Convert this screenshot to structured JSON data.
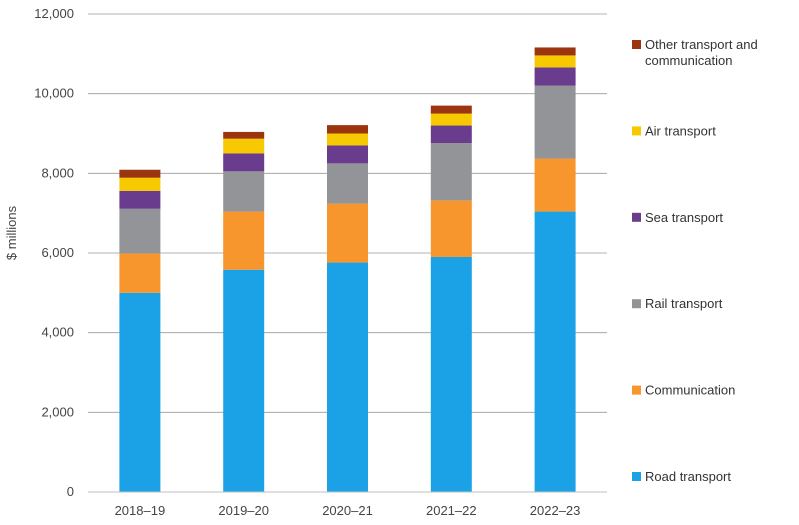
{
  "chart_data": {
    "type": "bar",
    "stacked": true,
    "title": "",
    "xlabel": "",
    "ylabel": "$ millions",
    "ylim": [
      0,
      12000
    ],
    "yticks": [
      0,
      2000,
      4000,
      6000,
      8000,
      10000,
      12000
    ],
    "ytick_labels": [
      "0",
      "2,000",
      "4,000",
      "6,000",
      "8,000",
      "10,000",
      "12,000"
    ],
    "grid": true,
    "legend_position": "right",
    "categories": [
      "2018–19",
      "2019–20",
      "2020–21",
      "2021–22",
      "2022–23"
    ],
    "series": [
      {
        "name": "Road transport",
        "color": "#1ba1e6",
        "values": [
          5000,
          5580,
          5760,
          5900,
          7040
        ]
      },
      {
        "name": "Communication",
        "color": "#f7962d",
        "values": [
          990,
          1460,
          1480,
          1420,
          1330
        ]
      },
      {
        "name": "Rail transport",
        "color": "#929497",
        "values": [
          1120,
          1010,
          1010,
          1440,
          1830
        ]
      },
      {
        "name": "Sea transport",
        "color": "#6a3c8d",
        "values": [
          450,
          450,
          450,
          440,
          460
        ]
      },
      {
        "name": "Air transport",
        "color": "#f7c900",
        "values": [
          330,
          370,
          300,
          300,
          300
        ]
      },
      {
        "name": "Other transport and communication",
        "color": "#9a3510",
        "values": [
          200,
          170,
          210,
          200,
          200
        ]
      }
    ]
  }
}
